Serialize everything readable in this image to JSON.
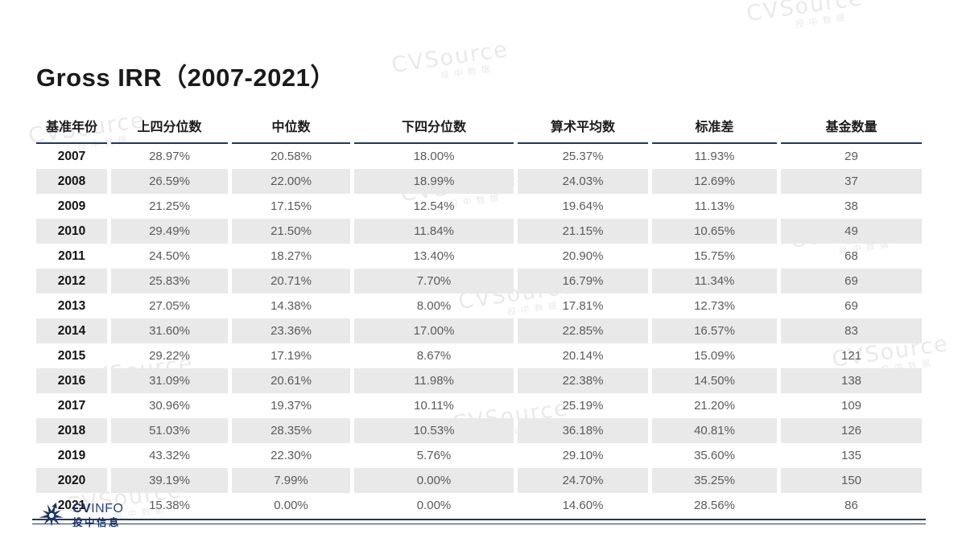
{
  "title": "Gross IRR（2007-2021）",
  "watermark": {
    "brand": "CVSource",
    "sub": "投中数据"
  },
  "table": {
    "headers": [
      "基准年份",
      "上四分位数",
      "中位数",
      "下四分位数",
      "算术平均数",
      "标准差",
      "基金数量"
    ],
    "rows": [
      [
        "2007",
        "28.97%",
        "20.58%",
        "18.00%",
        "25.37%",
        "11.93%",
        "29"
      ],
      [
        "2008",
        "26.59%",
        "22.00%",
        "18.99%",
        "24.03%",
        "12.69%",
        "37"
      ],
      [
        "2009",
        "21.25%",
        "17.15%",
        "12.54%",
        "19.64%",
        "11.13%",
        "38"
      ],
      [
        "2010",
        "29.49%",
        "21.50%",
        "11.84%",
        "21.15%",
        "10.65%",
        "49"
      ],
      [
        "2011",
        "24.50%",
        "18.27%",
        "13.40%",
        "20.90%",
        "15.75%",
        "68"
      ],
      [
        "2012",
        "25.83%",
        "20.71%",
        "7.70%",
        "16.79%",
        "11.34%",
        "69"
      ],
      [
        "2013",
        "27.05%",
        "14.38%",
        "8.00%",
        "17.81%",
        "12.73%",
        "69"
      ],
      [
        "2014",
        "31.60%",
        "23.36%",
        "17.00%",
        "22.85%",
        "16.57%",
        "83"
      ],
      [
        "2015",
        "29.22%",
        "17.19%",
        "8.67%",
        "20.14%",
        "15.09%",
        "121"
      ],
      [
        "2016",
        "31.09%",
        "20.61%",
        "11.98%",
        "22.38%",
        "14.50%",
        "138"
      ],
      [
        "2017",
        "30.96%",
        "19.37%",
        "10.11%",
        "25.19%",
        "21.20%",
        "109"
      ],
      [
        "2018",
        "51.03%",
        "28.35%",
        "10.53%",
        "36.18%",
        "40.81%",
        "126"
      ],
      [
        "2019",
        "43.32%",
        "22.30%",
        "5.76%",
        "29.10%",
        "35.60%",
        "135"
      ],
      [
        "2020",
        "39.19%",
        "7.99%",
        "0.00%",
        "24.70%",
        "35.25%",
        "150"
      ],
      [
        "2021",
        "15.38%",
        "0.00%",
        "0.00%",
        "14.60%",
        "28.56%",
        "86"
      ]
    ]
  },
  "footer": {
    "logo_cv": "CV",
    "logo_info": "INFO",
    "logo_cn": "投中信息"
  },
  "colors": {
    "accent_navy": "#1f3864",
    "logo_navy": "#1a3467",
    "row_stripe": "#e9e9e9",
    "value_text": "#5a5a5a",
    "watermark_gray": "#dcdcdc"
  }
}
